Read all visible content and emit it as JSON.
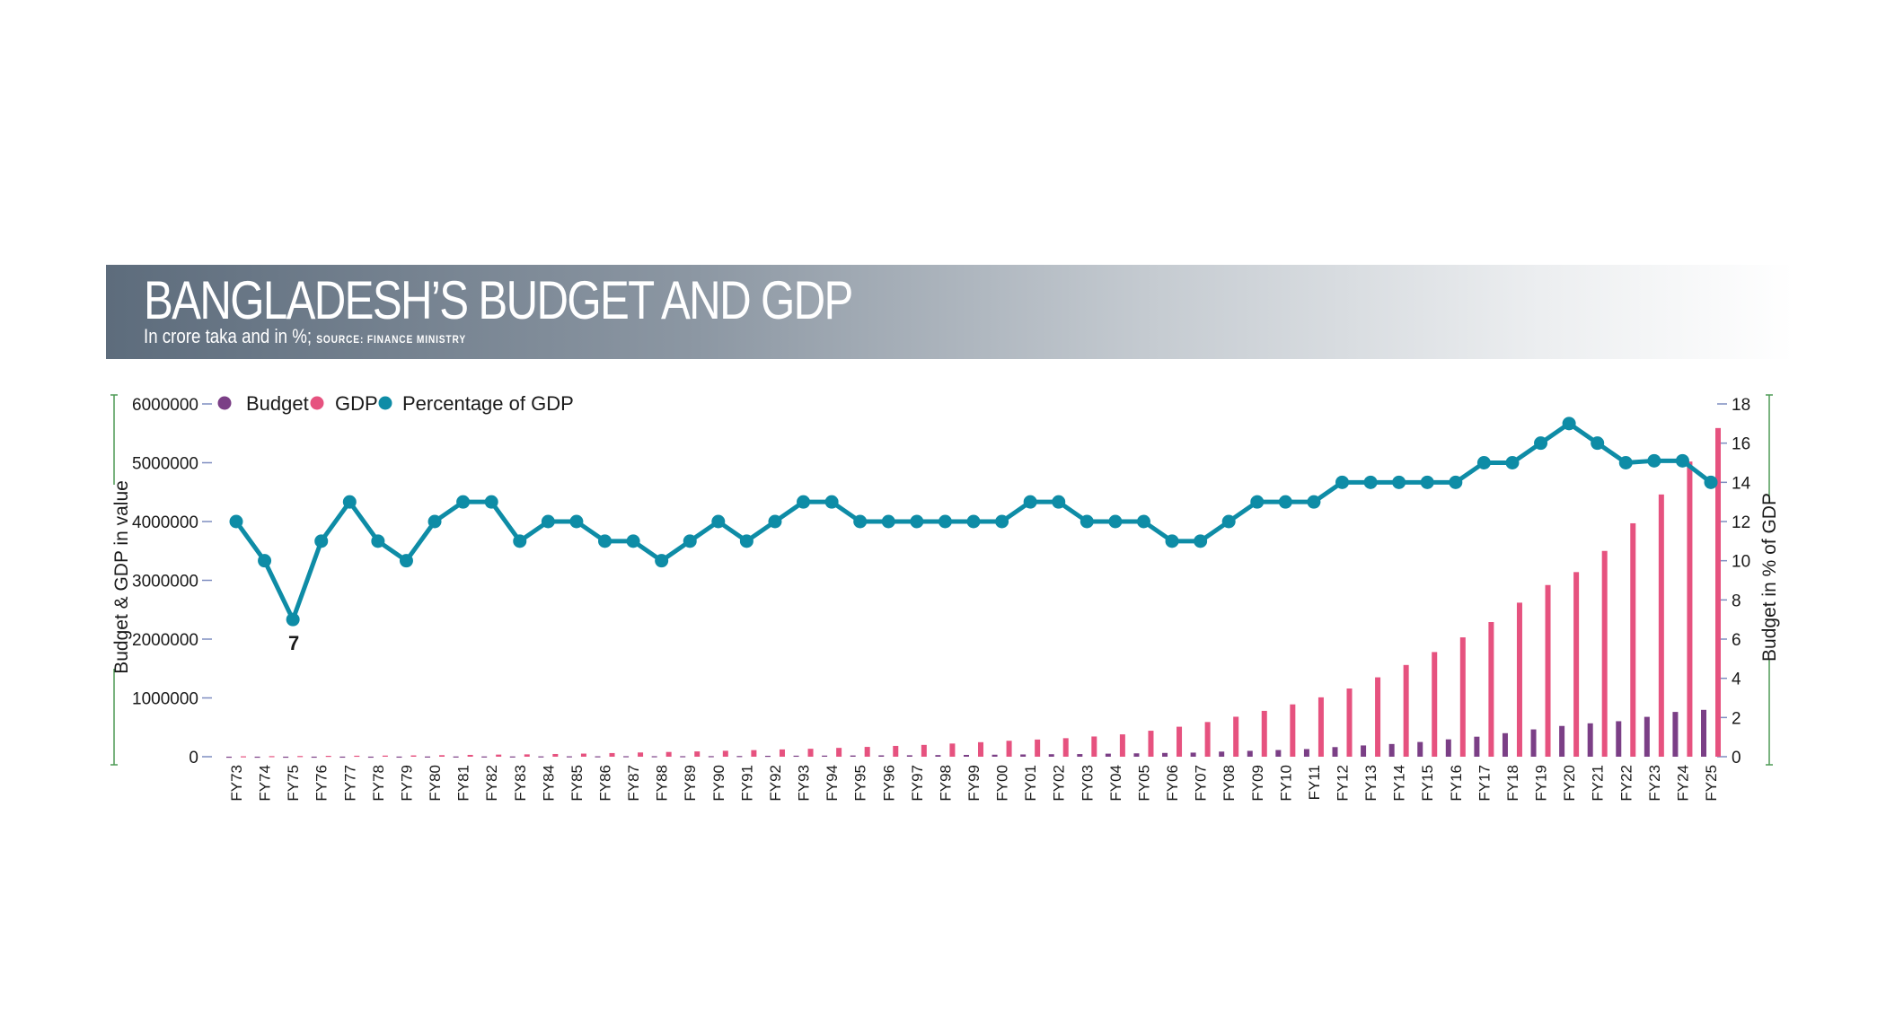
{
  "chart_data": {
    "type": "bar",
    "title": "BANGLADESH’S BUDGET AND GDP",
    "subtitle": "In crore taka and in %;",
    "source": "SOURCE: FINANCE MINISTRY",
    "categories": [
      "FY73",
      "FY74",
      "FY75",
      "FY76",
      "FY77",
      "FY78",
      "FY79",
      "FY80",
      "FY81",
      "FY82",
      "FY83",
      "FY84",
      "FY85",
      "FY86",
      "FY87",
      "FY88",
      "FY89",
      "FY90",
      "FY91",
      "FY92",
      "FY93",
      "FY94",
      "FY95",
      "FY96",
      "FY97",
      "FY98",
      "FY99",
      "FY00",
      "FY01",
      "FY02",
      "FY03",
      "FY04",
      "FY05",
      "FY06",
      "FY07",
      "FY08",
      "FY09",
      "FY10",
      "FY11",
      "FY12",
      "FY13",
      "FY14",
      "FY15",
      "FY16",
      "FY17",
      "FY18",
      "FY19",
      "FY20",
      "FY21",
      "FY22",
      "FY23",
      "FY24",
      "FY25"
    ],
    "series": [
      {
        "name": "Budget",
        "type": "bar",
        "axis": "left",
        "color": "#7b3f86",
        "values": [
          786,
          995,
          1084,
          1549,
          2184,
          1806,
          2499,
          3861,
          4108,
          4738,
          4738,
          5896,
          6696,
          7138,
          8527,
          8527,
          8800,
          9658,
          12025,
          15584,
          17605,
          19050,
          20948,
          23170,
          24603,
          27786,
          30796,
          34252,
          38524,
          42306,
          44854,
          51980,
          57248,
          64383,
          69740,
          87137,
          99962,
          113815,
          130011,
          163589,
          191738,
          216222,
          250506,
          295100,
          340605,
          400266,
          464573,
          523190,
          568000,
          603681,
          678064,
          761785,
          797000
        ]
      },
      {
        "name": "GDP",
        "type": "bar",
        "axis": "left",
        "color": "#e6527f",
        "values": [
          7000,
          10000,
          12000,
          15000,
          17000,
          19000,
          22000,
          26000,
          31000,
          36000,
          40000,
          46000,
          53000,
          62000,
          72000,
          81000,
          90000,
          101000,
          112000,
          124000,
          135000,
          150000,
          167000,
          184000,
          201000,
          224000,
          247000,
          271000,
          292000,
          315000,
          344000,
          380000,
          442000,
          510000,
          590000,
          680000,
          780000,
          890000,
          1010000,
          1160000,
          1350000,
          1560000,
          1780000,
          2030000,
          2290000,
          2620000,
          2920000,
          3140000,
          3500000,
          3970000,
          4460000,
          5020000,
          5590000
        ]
      },
      {
        "name": "Percentage of GDP",
        "type": "line",
        "axis": "right",
        "color": "#0e8ca6",
        "values": [
          12,
          10,
          7,
          11,
          13,
          11,
          10,
          12,
          13,
          13,
          11,
          12,
          12,
          11,
          11,
          10,
          11,
          12,
          11,
          12,
          13,
          13,
          12,
          12,
          12,
          12,
          12,
          12,
          13,
          13,
          12,
          12,
          12,
          11,
          11,
          12,
          13,
          13,
          13,
          14,
          14,
          14,
          14,
          14,
          15,
          15,
          16,
          17,
          16,
          15,
          15.1,
          15.1,
          14
        ]
      }
    ],
    "ylabel": "Budget & GDP in value",
    "y2label": "Budget in % of GDP",
    "ylim": [
      0,
      6000000
    ],
    "y2lim": [
      0,
      18
    ],
    "yticks": [
      "0",
      "1000000",
      "2000000",
      "3000000",
      "4000000",
      "5000000",
      "6000000"
    ],
    "y2ticks": [
      "0",
      "2",
      "4",
      "6",
      "8",
      "10",
      "12",
      "14",
      "16",
      "18"
    ],
    "annotation": {
      "category": "FY75",
      "text": "7"
    },
    "legend_position": "top-left",
    "grid": false
  }
}
